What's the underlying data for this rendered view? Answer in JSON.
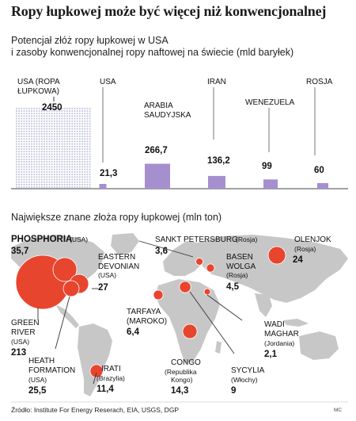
{
  "title": "Ropy łupkowej może być więcej niż konwencjonalnej",
  "chart_data": [
    {
      "type": "bar",
      "title": "Potencjał złóż ropy łupkowej w USA i zasoby konwencjonalnej ropy naftowej na świecie (mld baryłek)",
      "title_lines": [
        "Potencjał złóż ropy łupkowej w USA",
        "i zasoby konwencjonalnej ropy naftowej na świecie (mld baryłek)"
      ],
      "categories": [
        "USA (ROPA ŁUPKOWA)",
        "USA",
        "ARABIA SAUDYJSKA",
        "IRAN",
        "WENEZUELA",
        "ROSJA"
      ],
      "values": [
        2450,
        21.3,
        266.7,
        136.2,
        99,
        60
      ],
      "value_labels": [
        "2450",
        "21,3",
        "266,7",
        "136,2",
        "99",
        "60"
      ],
      "colors": {
        "shale": "#b8bcd6",
        "conventional": "#a58fcf",
        "axis": "#444444"
      }
    },
    {
      "type": "bubble-map",
      "title": "Największe znane złoża ropy łupkowej (mln ton)",
      "colors": {
        "bubble": "#e8452e",
        "land": "#c7c7c7",
        "lines": "#333333"
      },
      "points": [
        {
          "name": "PHOSPHORIA",
          "note": "(USA)",
          "value": 35.7,
          "value_label": "35,7"
        },
        {
          "name": "EASTERN DEVONIAN",
          "note": "(USA)",
          "value": 27,
          "value_label": "27"
        },
        {
          "name": "GREEN RIVER",
          "note": "(USA)",
          "value": 213,
          "value_label": "213"
        },
        {
          "name": "HEATH FORMATION",
          "note": "(USA)",
          "value": 25.5,
          "value_label": "25,5"
        },
        {
          "name": "IRATI",
          "note": "(Brazylia)",
          "value": 11.4,
          "value_label": "11,4"
        },
        {
          "name": "TARFAYA",
          "note": "(MAROKO)",
          "value": 6.4,
          "value_label": "6,4"
        },
        {
          "name": "CONGO",
          "note": "(Republika Kongo)",
          "value": 14.3,
          "value_label": "14,3"
        },
        {
          "name": "SYCYLIA",
          "note": "(Włochy)",
          "value": 9,
          "value_label": "9"
        },
        {
          "name": "SANKT PETERSBURG",
          "note": "(Rosja)",
          "value": 3.6,
          "value_label": "3,6"
        },
        {
          "name": "BASEN WOLGA",
          "note": "(Rosja)",
          "value": 4.5,
          "value_label": "4,5"
        },
        {
          "name": "OLENJOK",
          "note": "(Rosja)",
          "value": 24,
          "value_label": "24"
        },
        {
          "name": "WADI MAGHAR",
          "note": "(Jordania)",
          "value": 2.1,
          "value_label": "2,1"
        }
      ]
    }
  ],
  "source": "Źródło: Institute For Energy Reserach, EIA, USGS, DGP",
  "credit": "MC"
}
